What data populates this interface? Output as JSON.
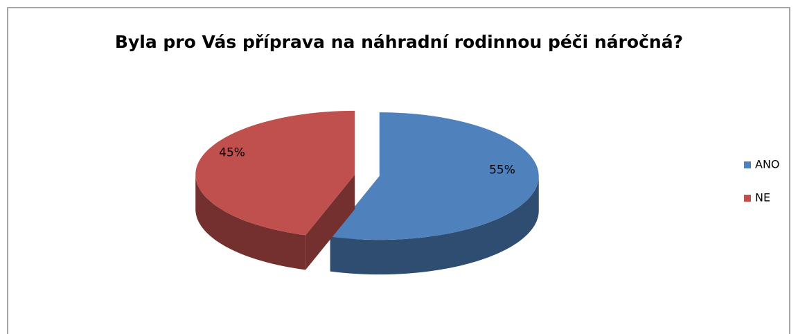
{
  "chart_data": {
    "type": "pie",
    "title": "Byla pro Vás příprava na náhradní rodinnou péči náročná?",
    "categories": [
      "ANO",
      "NE"
    ],
    "values": [
      55,
      45
    ],
    "value_labels": [
      "55%",
      "45%"
    ],
    "colors": [
      "#4f81bd",
      "#c0504d"
    ],
    "legend": "right"
  }
}
